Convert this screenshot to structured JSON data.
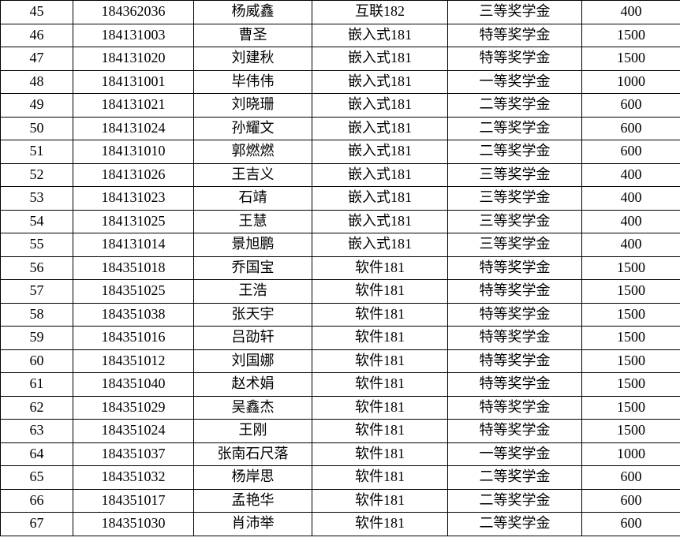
{
  "rows": [
    [
      "45",
      "184362036",
      "杨威鑫",
      "互联182",
      "三等奖学金",
      "400"
    ],
    [
      "46",
      "184131003",
      "曹圣",
      "嵌入式181",
      "特等奖学金",
      "1500"
    ],
    [
      "47",
      "184131020",
      "刘建秋",
      "嵌入式181",
      "特等奖学金",
      "1500"
    ],
    [
      "48",
      "184131001",
      "毕伟伟",
      "嵌入式181",
      "一等奖学金",
      "1000"
    ],
    [
      "49",
      "184131021",
      "刘晓珊",
      "嵌入式181",
      "二等奖学金",
      "600"
    ],
    [
      "50",
      "184131024",
      "孙耀文",
      "嵌入式181",
      "二等奖学金",
      "600"
    ],
    [
      "51",
      "184131010",
      "郭燃燃",
      "嵌入式181",
      "二等奖学金",
      "600"
    ],
    [
      "52",
      "184131026",
      "王吉义",
      "嵌入式181",
      "三等奖学金",
      "400"
    ],
    [
      "53",
      "184131023",
      "石靖",
      "嵌入式181",
      "三等奖学金",
      "400"
    ],
    [
      "54",
      "184131025",
      "王慧",
      "嵌入式181",
      "三等奖学金",
      "400"
    ],
    [
      "55",
      "184131014",
      "景旭鹏",
      "嵌入式181",
      "三等奖学金",
      "400"
    ],
    [
      "56",
      "184351018",
      "乔国宝",
      "软件181",
      "特等奖学金",
      "1500"
    ],
    [
      "57",
      "184351025",
      "王浩",
      "软件181",
      "特等奖学金",
      "1500"
    ],
    [
      "58",
      "184351038",
      "张天宇",
      "软件181",
      "特等奖学金",
      "1500"
    ],
    [
      "59",
      "184351016",
      "吕劭轩",
      "软件181",
      "特等奖学金",
      "1500"
    ],
    [
      "60",
      "184351012",
      "刘国娜",
      "软件181",
      "特等奖学金",
      "1500"
    ],
    [
      "61",
      "184351040",
      "赵术娟",
      "软件181",
      "特等奖学金",
      "1500"
    ],
    [
      "62",
      "184351029",
      "吴鑫杰",
      "软件181",
      "特等奖学金",
      "1500"
    ],
    [
      "63",
      "184351024",
      "王刚",
      "软件181",
      "特等奖学金",
      "1500"
    ],
    [
      "64",
      "184351037",
      "张南石尺落",
      "软件181",
      "一等奖学金",
      "1000"
    ],
    [
      "65",
      "184351032",
      "杨岸思",
      "软件181",
      "二等奖学金",
      "600"
    ],
    [
      "66",
      "184351017",
      "孟艳华",
      "软件181",
      "二等奖学金",
      "600"
    ],
    [
      "67",
      "184351030",
      "肖沛举",
      "软件181",
      "二等奖学金",
      "600"
    ]
  ]
}
